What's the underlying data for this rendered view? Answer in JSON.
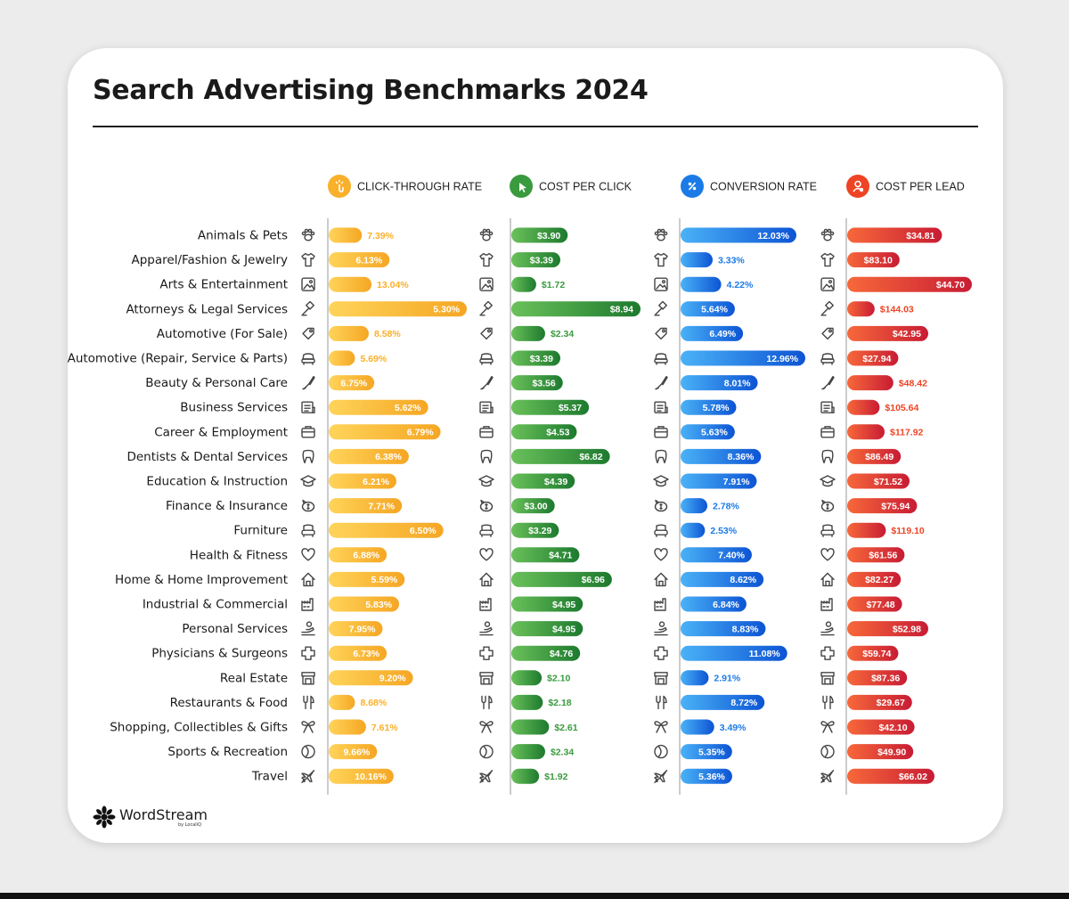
{
  "title": "Search Advertising Benchmarks 2024",
  "logo": {
    "name": "WordStream",
    "sub": "by LocaliQ"
  },
  "chart_data": {
    "type": "bar",
    "title": "Search Advertising Benchmarks 2024",
    "categories": [
      "Animals & Pets",
      "Apparel/Fashion & Jewelry",
      "Arts & Entertainment",
      "Attorneys & Legal Services",
      "Automotive (For Sale)",
      "Automotive (Repair, Service & Parts)",
      "Beauty & Personal Care",
      "Business Services",
      "Career & Employment",
      "Dentists & Dental Services",
      "Education & Instruction",
      "Finance & Insurance",
      "Furniture",
      "Health & Fitness",
      "Home & Home Improvement",
      "Industrial & Commercial",
      "Personal Services",
      "Physicians & Surgeons",
      "Real Estate",
      "Restaurants & Food",
      "Shopping, Collectibles & Gifts",
      "Sports & Recreation",
      "Travel"
    ],
    "icons": [
      "paw-icon",
      "shirt-icon",
      "picture-icon",
      "gavel-icon",
      "tag-icon",
      "car-icon",
      "brush-icon",
      "document-icon",
      "briefcase-icon",
      "tooth-icon",
      "graduation-cap-icon",
      "piggy-bank-icon",
      "armchair-icon",
      "heart-icon",
      "house-icon",
      "factory-icon",
      "hand-icon",
      "medical-cross-icon",
      "storefront-icon",
      "utensils-icon",
      "gift-bow-icon",
      "ball-icon",
      "plane-icon"
    ],
    "series": [
      {
        "name": "CLICK-THROUGH RATE",
        "color": "#f9b02a",
        "header_icon": "hand-click-icon",
        "values": [
          7.39,
          6.13,
          13.04,
          5.3,
          8.58,
          5.69,
          6.75,
          5.62,
          6.79,
          6.38,
          6.21,
          7.71,
          6.5,
          6.88,
          5.59,
          5.83,
          7.95,
          6.73,
          9.2,
          8.68,
          7.61,
          9.66,
          10.16
        ],
        "labels": [
          "7.39%",
          "6.13%",
          "13.04%",
          "5.30%",
          "8.58%",
          "5.69%",
          "6.75%",
          "5.62%",
          "6.79%",
          "6.38%",
          "6.21%",
          "7.71%",
          "6.50%",
          "6.88%",
          "5.59%",
          "5.83%",
          "7.95%",
          "6.73%",
          "9.20%",
          "8.68%",
          "7.61%",
          "9.66%",
          "10.16%"
        ],
        "bar_lengths": [
          0.24,
          0.44,
          0.31,
          1.0,
          0.29,
          0.19,
          0.33,
          0.72,
          0.81,
          0.58,
          0.49,
          0.53,
          0.83,
          0.42,
          0.55,
          0.51,
          0.39,
          0.42,
          0.61,
          0.19,
          0.27,
          0.35,
          0.47
        ]
      },
      {
        "name": "COST PER CLICK",
        "color": "#3a9a3e",
        "header_icon": "cursor-click-icon",
        "values": [
          3.9,
          3.39,
          1.72,
          8.94,
          2.34,
          3.39,
          3.56,
          5.37,
          4.53,
          6.82,
          4.39,
          3.0,
          3.29,
          4.71,
          6.96,
          4.95,
          4.95,
          4.76,
          2.1,
          2.18,
          2.61,
          2.34,
          1.92
        ],
        "labels": [
          "$3.90",
          "$3.39",
          "$1.72",
          "$8.94",
          "$2.34",
          "$3.39",
          "$3.56",
          "$5.37",
          "$4.53",
          "$6.82",
          "$4.39",
          "$3.00",
          "$3.29",
          "$4.71",
          "$6.96",
          "$4.95",
          "$4.95",
          "$4.76",
          "$2.10",
          "$2.18",
          "$2.61",
          "$2.34",
          "$1.92"
        ]
      },
      {
        "name": "CONVERSION RATE",
        "color": "#1b7be6",
        "header_icon": "percent-icon",
        "values": [
          12.03,
          3.33,
          4.22,
          5.64,
          6.49,
          12.96,
          8.01,
          5.78,
          5.63,
          8.36,
          7.91,
          2.78,
          2.53,
          7.4,
          8.62,
          6.84,
          8.83,
          11.08,
          2.91,
          8.72,
          3.49,
          5.35,
          5.36
        ],
        "labels": [
          "12.03%",
          "3.33%",
          "4.22%",
          "5.64%",
          "6.49%",
          "12.96%",
          "8.01%",
          "5.78%",
          "5.63%",
          "8.36%",
          "7.91%",
          "2.78%",
          "2.53%",
          "7.40%",
          "8.62%",
          "6.84%",
          "8.83%",
          "11.08%",
          "2.91%",
          "8.72%",
          "3.49%",
          "5.35%",
          "5.36%"
        ]
      },
      {
        "name": "COST PER LEAD",
        "color": "#ee4425",
        "header_icon": "person-pin-icon",
        "values": [
          34.81,
          83.1,
          44.7,
          144.03,
          42.95,
          27.94,
          48.42,
          105.64,
          117.92,
          86.49,
          71.52,
          75.94,
          119.1,
          61.56,
          82.27,
          77.48,
          52.98,
          59.74,
          87.36,
          29.67,
          42.1,
          49.9,
          66.02
        ],
        "labels": [
          "$34.81",
          "$83.10",
          "$44.70",
          "$144.03",
          "$42.95",
          "$27.94",
          "$48.42",
          "$105.64",
          "$117.92",
          "$86.49",
          "$71.52",
          "$75.94",
          "$119.10",
          "$61.56",
          "$82.27",
          "$77.48",
          "$52.98",
          "$59.74",
          "$87.36",
          "$29.67",
          "$42.10",
          "$49.90",
          "$66.02"
        ],
        "bar_lengths": [
          0.76,
          0.42,
          1.0,
          0.22,
          0.65,
          0.41,
          0.37,
          0.26,
          0.3,
          0.43,
          0.5,
          0.56,
          0.31,
          0.46,
          0.43,
          0.44,
          0.65,
          0.41,
          0.48,
          0.52,
          0.54,
          0.53,
          0.7
        ]
      }
    ]
  }
}
